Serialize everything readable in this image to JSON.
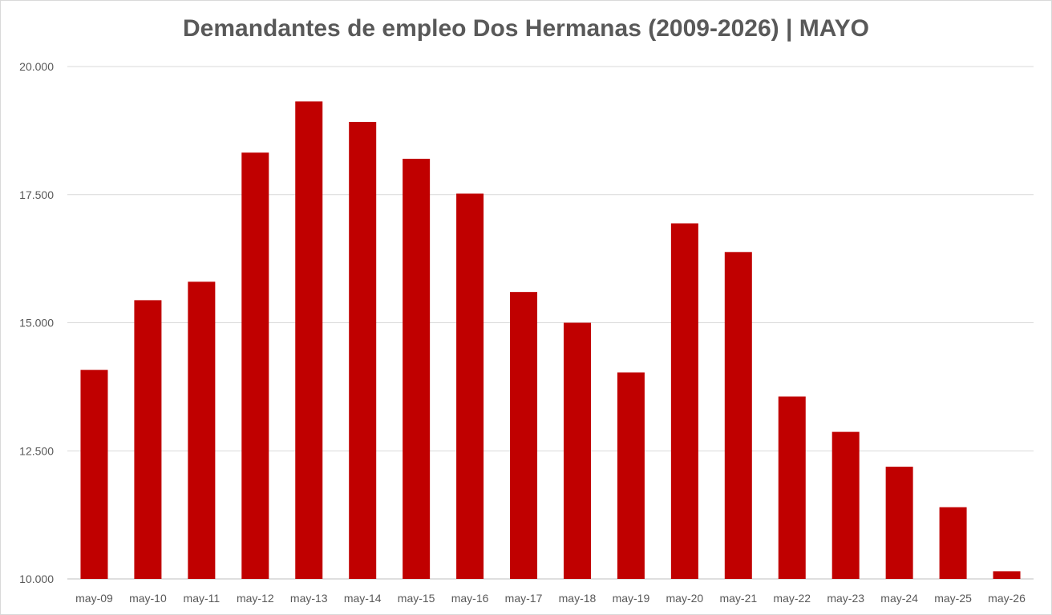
{
  "chart_data": {
    "type": "bar",
    "title": "Demandantes de empleo Dos Hermanas (2009-2026) | MAYO",
    "xlabel": "",
    "ylabel": "",
    "ylim": [
      10000,
      20000
    ],
    "y_ticks": [
      {
        "value": 10000,
        "label": "10.000"
      },
      {
        "value": 12500,
        "label": "12.500"
      },
      {
        "value": 15000,
        "label": "15.000"
      },
      {
        "value": 17500,
        "label": "17.500"
      },
      {
        "value": 20000,
        "label": "20.000"
      }
    ],
    "grid": true,
    "legend": "none",
    "bar_color": "#c00000",
    "categories": [
      "may-09",
      "may-10",
      "may-11",
      "may-12",
      "may-13",
      "may-14",
      "may-15",
      "may-16",
      "may-17",
      "may-18",
      "may-19",
      "may-20",
      "may-21",
      "may-22",
      "may-23",
      "may-24",
      "may-25",
      "may-26"
    ],
    "values": [
      14080,
      15440,
      15800,
      18320,
      19320,
      18920,
      18200,
      17520,
      15600,
      15000,
      14030,
      16940,
      16380,
      13560,
      12870,
      12190,
      11400,
      10150
    ]
  }
}
